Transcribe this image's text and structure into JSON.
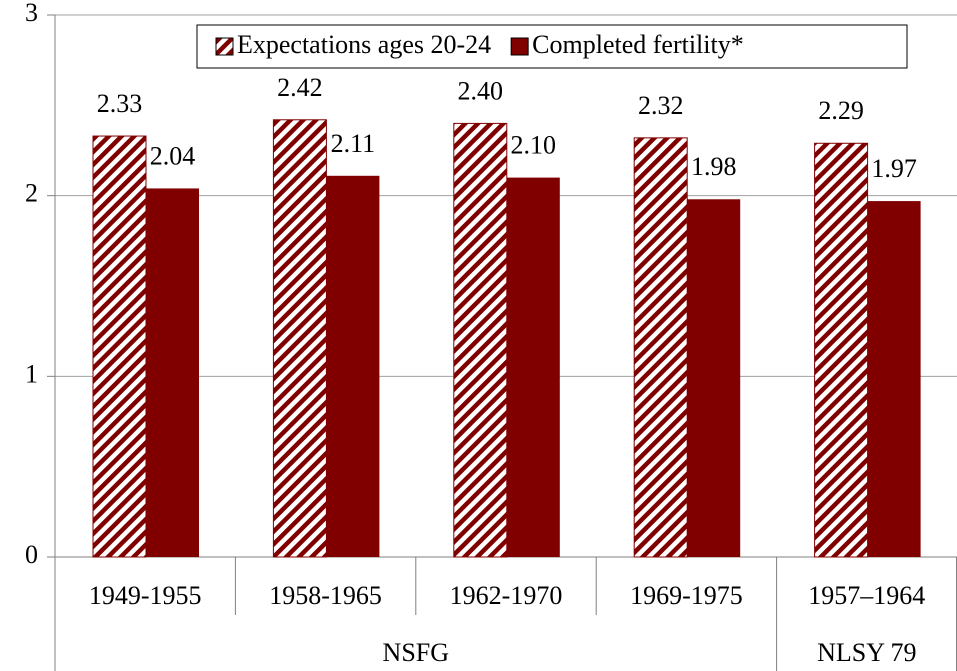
{
  "chart_data": {
    "type": "bar",
    "categories": [
      "1949-1955",
      "1958-1965",
      "1962-1970",
      "1969-1975",
      "1957–1964"
    ],
    "category_groups": [
      "NSFG",
      "NSFG",
      "NSFG",
      "NSFG",
      "NLSY 79"
    ],
    "series": [
      {
        "name": "Expectations ages 20-24",
        "color": "#800000",
        "hatch": true,
        "values": [
          2.33,
          2.42,
          2.4,
          2.32,
          2.29
        ],
        "value_labels": [
          "2.33",
          "2.42",
          "2.40",
          "2.32",
          "2.29"
        ]
      },
      {
        "name": "Completed fertility*",
        "color": "#800000",
        "hatch": false,
        "values": [
          2.04,
          2.11,
          2.1,
          1.98,
          1.97
        ],
        "value_labels": [
          "2.04",
          "2.11",
          "2.10",
          "1.98",
          "1.97"
        ]
      }
    ],
    "ylim": [
      0,
      3
    ],
    "yticks": [
      0,
      1,
      2,
      3
    ],
    "grid": true,
    "legend": "top-right"
  }
}
